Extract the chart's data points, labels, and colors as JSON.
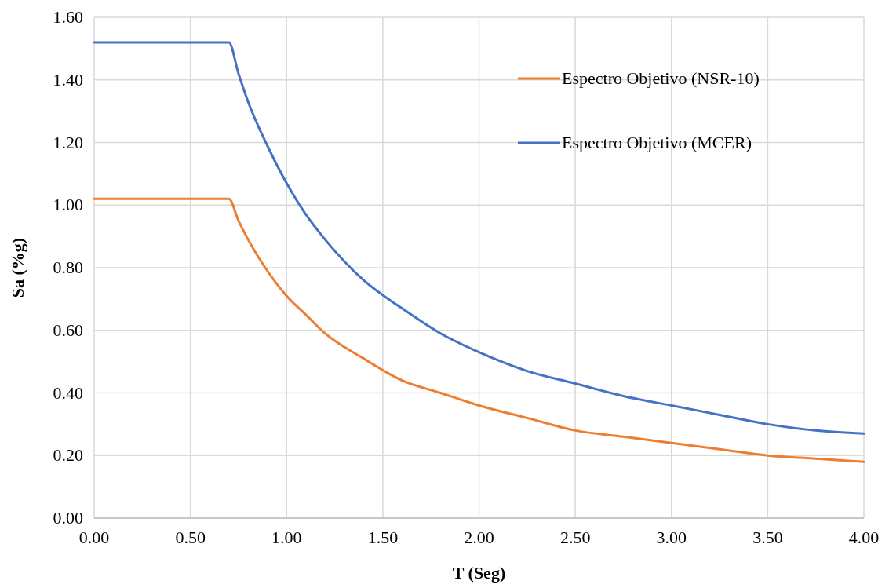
{
  "chart_data": {
    "type": "line",
    "xlabel": "T (Seg)",
    "ylabel": "Sa (%g)",
    "x": [
      0,
      0.7,
      0.75,
      0.8,
      0.9,
      1.0,
      1.1,
      1.2,
      1.4,
      1.6,
      1.8,
      2.0,
      2.25,
      2.5,
      2.75,
      3.0,
      3.25,
      3.5,
      3.75,
      4.0
    ],
    "series": [
      {
        "name": "Espectro Objetivo (NSR-10)",
        "color": "#ed7d31",
        "values": [
          1.02,
          1.02,
          0.95,
          0.89,
          0.79,
          0.71,
          0.65,
          0.59,
          0.51,
          0.44,
          0.4,
          0.36,
          0.32,
          0.28,
          0.26,
          0.24,
          0.22,
          0.2,
          0.19,
          0.18
        ]
      },
      {
        "name": "Espectro Objetivo (MCER)",
        "color": "#4472c4",
        "values": [
          1.52,
          1.52,
          1.42,
          1.33,
          1.19,
          1.07,
          0.97,
          0.89,
          0.76,
          0.67,
          0.59,
          0.53,
          0.47,
          0.43,
          0.39,
          0.36,
          0.33,
          0.3,
          0.28,
          0.27
        ]
      }
    ],
    "xlim": [
      0,
      4
    ],
    "xticks": [
      {
        "value": 0,
        "label": "0.00"
      },
      {
        "value": 0.5,
        "label": "0.50"
      },
      {
        "value": 1,
        "label": "1.00"
      },
      {
        "value": 1.5,
        "label": "1.50"
      },
      {
        "value": 2,
        "label": "2.00"
      },
      {
        "value": 2.5,
        "label": "2.50"
      },
      {
        "value": 3,
        "label": "3.00"
      },
      {
        "value": 3.5,
        "label": "3.50"
      },
      {
        "value": 4,
        "label": "4.00"
      }
    ],
    "ylim": [
      0,
      1.6
    ],
    "yticks": [
      {
        "value": 0,
        "label": "0.00"
      },
      {
        "value": 0.2,
        "label": "0.20"
      },
      {
        "value": 0.4,
        "label": "0.40"
      },
      {
        "value": 0.6,
        "label": "0.60"
      },
      {
        "value": 0.8,
        "label": "0.80"
      },
      {
        "value": 1,
        "label": "1.00"
      },
      {
        "value": 1.2,
        "label": "1.20"
      },
      {
        "value": 1.4,
        "label": "1.40"
      },
      {
        "value": 1.6,
        "label": "1.60"
      }
    ],
    "grid": true,
    "legend": "top right",
    "marker": "none",
    "line_style": "solid"
  }
}
